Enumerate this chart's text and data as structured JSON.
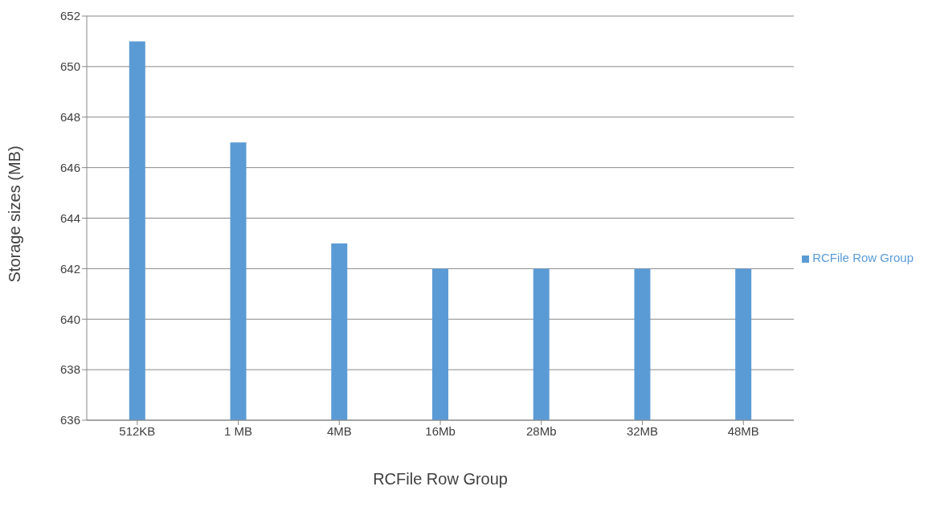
{
  "chart_data": {
    "type": "bar",
    "xlabel": "RCFile Row Group",
    "ylabel": "Storage sizes (MB)",
    "categories": [
      "512KB",
      "1 MB",
      "4MB",
      "16Mb",
      "28Mb",
      "32MB",
      "48MB"
    ],
    "series": [
      {
        "name": "RCFile Row Group",
        "color": "#5b9bd5",
        "values": [
          651,
          647,
          643,
          642,
          642,
          642,
          642
        ]
      }
    ],
    "ylim": [
      636,
      652
    ],
    "yticks": [
      636,
      638,
      640,
      642,
      644,
      646,
      648,
      650,
      652
    ],
    "grid": "y",
    "legend": "right"
  }
}
